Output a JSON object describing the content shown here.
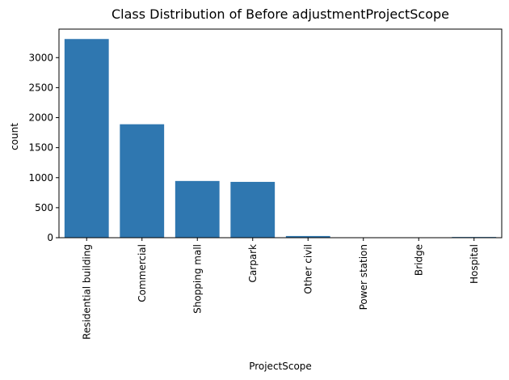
{
  "chart_data": {
    "type": "bar",
    "title": "Class Distribution of Before adjustmentProjectScope",
    "xlabel": "ProjectScope",
    "ylabel": "count",
    "categories": [
      "Residential building",
      "Commercial",
      "Shopping mall",
      "Carpark",
      "Other civil",
      "Power station",
      "Bridge",
      "Hospital"
    ],
    "values": [
      3310,
      1890,
      945,
      930,
      28,
      3,
      2,
      12
    ],
    "ylim": [
      0,
      3475
    ],
    "yticks": [
      0,
      500,
      1000,
      1500,
      2000,
      2500,
      3000
    ],
    "bar_color": "#2f77b0",
    "grid": false,
    "legend": "none"
  }
}
